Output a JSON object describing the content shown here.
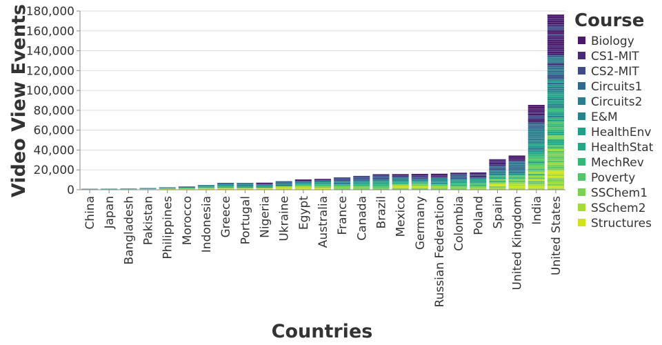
{
  "chart_data": {
    "type": "bar",
    "stacked": true,
    "xlabel": "Countries",
    "ylabel": "Video View Events",
    "ylim": [
      0,
      180000
    ],
    "y_ticks": [
      0,
      20000,
      40000,
      60000,
      80000,
      100000,
      120000,
      140000,
      160000,
      180000
    ],
    "y_tick_labels": [
      "0",
      "20,000",
      "40,000",
      "60,000",
      "80,000",
      "100,000",
      "120,000",
      "140,000",
      "160,000",
      "180,000"
    ],
    "categories": [
      "China",
      "Japan",
      "Bangladesh",
      "Pakistan",
      "Philippines",
      "Morocco",
      "Indonesia",
      "Greece",
      "Portugal",
      "Nigeria",
      "Ukraine",
      "Egypt",
      "Australia",
      "France",
      "Canada",
      "Brazil",
      "Mexico",
      "Germany",
      "Russian Federation",
      "Colombia",
      "Poland",
      "Spain",
      "United Kingdom",
      "India",
      "United States"
    ],
    "totals": [
      1000,
      1200,
      1400,
      1800,
      2500,
      3300,
      4800,
      7000,
      7000,
      7200,
      8700,
      10400,
      11000,
      12500,
      14000,
      15700,
      15800,
      16000,
      16200,
      17200,
      17500,
      30800,
      34500,
      85500,
      176500
    ],
    "legend": {
      "title": "Course",
      "position": "right",
      "items": [
        {
          "name": "Biology",
          "color": "#4a1a6a"
        },
        {
          "name": "CS1-MIT",
          "color": "#482878"
        },
        {
          "name": "CS2-MIT",
          "color": "#3e4a89"
        },
        {
          "name": "Circuits1",
          "color": "#31688e"
        },
        {
          "name": "Circuits2",
          "color": "#2c7d8e"
        },
        {
          "name": "E&M",
          "color": "#26828e"
        },
        {
          "name": "HealthEnv",
          "color": "#1f9e89"
        },
        {
          "name": "HealthStat",
          "color": "#22a884"
        },
        {
          "name": "MechRev",
          "color": "#35b779"
        },
        {
          "name": "Poverty",
          "color": "#54c568"
        },
        {
          "name": "SSChem1",
          "color": "#7ad151"
        },
        {
          "name": "SSchem2",
          "color": "#a5db36"
        },
        {
          "name": "Structures",
          "color": "#d2e21b"
        }
      ]
    }
  }
}
